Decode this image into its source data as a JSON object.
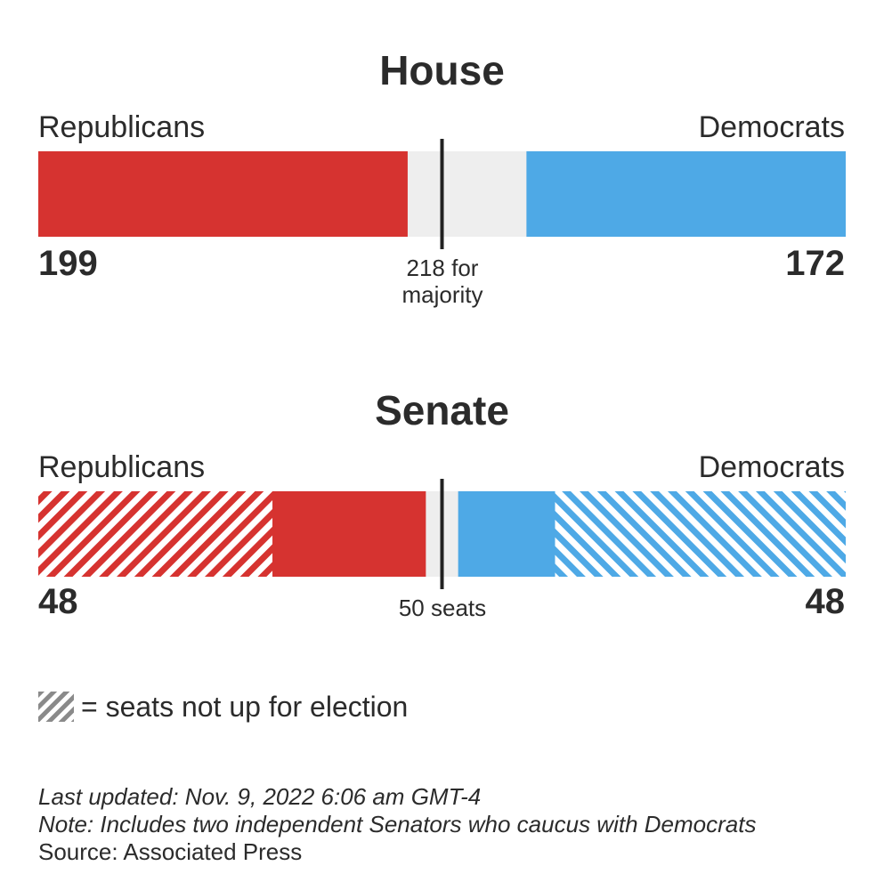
{
  "chart_data": [
    {
      "type": "bar",
      "title": "House",
      "total": 435,
      "majority": 218,
      "center_label_line1": "218 for",
      "center_label_line2": "majority",
      "left": {
        "party": "Republicans",
        "count": 199,
        "color": "#d63330"
      },
      "right": {
        "party": "Democrats",
        "count": 172,
        "color": "#4ea9e6"
      },
      "undecided_color": "#eeeeee"
    },
    {
      "type": "bar",
      "title": "Senate",
      "total": 100,
      "majority": 50,
      "center_label_line1": "50 seats",
      "left": {
        "party": "Republicans",
        "count": 48,
        "not_up": 29,
        "color": "#d63330"
      },
      "right": {
        "party": "Democrats",
        "count": 48,
        "not_up": 36,
        "color": "#4ea9e6"
      },
      "undecided_color": "#eeeeee"
    }
  ],
  "legend": {
    "text": "= seats not up for election"
  },
  "footer": {
    "updated": "Last updated: Nov. 9, 2022 6:06 am GMT-4",
    "note": "Note: Includes two independent Senators who caucus with Democrats",
    "source": "Source: Associated Press"
  }
}
